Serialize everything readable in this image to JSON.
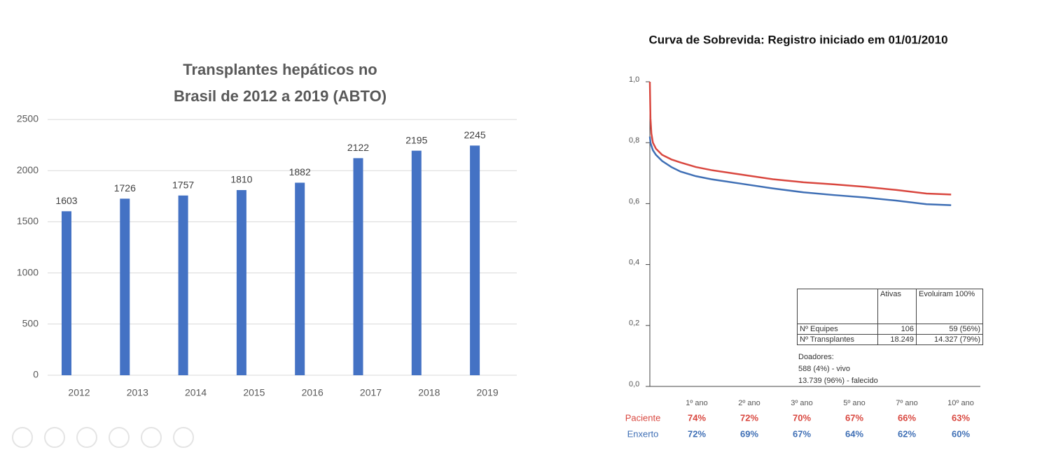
{
  "chart_data": [
    {
      "type": "bar",
      "title": [
        "Transplantes hepáticos no",
        "Brasil de 2012 a 2019 (ABTO)"
      ],
      "categories": [
        "2012",
        "2013",
        "2014",
        "2015",
        "2016",
        "2017",
        "2018",
        "2019"
      ],
      "values": [
        1603,
        1726,
        1757,
        1810,
        1882,
        2122,
        2195,
        2245
      ],
      "color": "#4472c4",
      "ylim": [
        0,
        2500
      ],
      "yticks": [
        0,
        500,
        1000,
        1500,
        2000,
        2500
      ],
      "grid": true
    },
    {
      "type": "line",
      "title": "Curva de Sobrevida: Registro iniciado em 01/01/2010",
      "ylim": [
        0,
        1
      ],
      "yticks": [
        {
          "value": 0,
          "label": "0,0"
        },
        {
          "value": 0.2,
          "label": "0,2"
        },
        {
          "value": 0.4,
          "label": "0,4"
        },
        {
          "value": 0.6,
          "label": "0,6"
        },
        {
          "value": 0.8,
          "label": "0,8"
        },
        {
          "value": 1,
          "label": "1,0"
        }
      ],
      "xlim": [
        0,
        10
      ],
      "curves": [
        {
          "x": [
            0,
            0.02,
            0.05,
            0.1,
            0.2,
            0.4,
            0.7,
            1,
            1.5,
            2,
            3,
            4,
            5,
            6,
            7,
            8,
            9,
            9.8
          ],
          "values": [
            1.0,
            0.88,
            0.83,
            0.8,
            0.78,
            0.76,
            0.745,
            0.735,
            0.72,
            0.71,
            0.695,
            0.68,
            0.67,
            0.663,
            0.655,
            0.645,
            0.633,
            0.63
          ]
        },
        {
          "x": [
            0,
            0.02,
            0.05,
            0.1,
            0.2,
            0.4,
            0.7,
            1,
            1.5,
            2,
            3,
            4,
            5,
            6,
            7,
            8,
            9,
            9.8
          ],
          "values": [
            0.82,
            0.8,
            0.79,
            0.775,
            0.76,
            0.74,
            0.72,
            0.705,
            0.69,
            0.68,
            0.665,
            0.65,
            0.637,
            0.628,
            0.62,
            0.61,
            0.598,
            0.595
          ]
        }
      ],
      "categories": [
        "1º ano",
        "2º ano",
        "3º ano",
        "5º ano",
        "7º ano",
        "10º ano"
      ],
      "series": [
        {
          "name": "Paciente",
          "color": "#d9473f",
          "values": [
            74,
            72,
            70,
            67,
            66,
            63
          ],
          "value_labels": [
            "74%",
            "72%",
            "70%",
            "67%",
            "66%",
            "63%"
          ]
        },
        {
          "name": "Enxerto",
          "color": "#3f6fb5",
          "values": [
            72,
            69,
            67,
            64,
            62,
            60
          ],
          "value_labels": [
            "72%",
            "69%",
            "67%",
            "64%",
            "62%",
            "60%"
          ]
        }
      ],
      "table": {
        "columns": [
          "Ativas",
          "Evoluiram 100%"
        ],
        "rows": [
          [
            "Nº Equipes",
            "106",
            "59 (56%)"
          ],
          [
            "Nº Transplantes",
            "18.249",
            "14.327 (79%)"
          ]
        ],
        "notes": [
          "Doadores:",
          "588 (4%) - vivo",
          "13.739 (96%) - falecido"
        ]
      }
    }
  ]
}
